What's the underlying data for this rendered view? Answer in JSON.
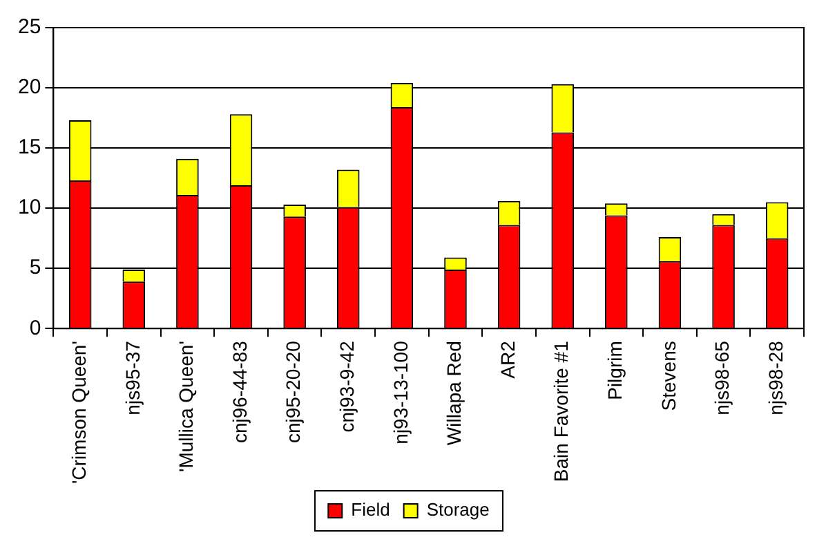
{
  "chart_data": {
    "type": "bar",
    "stacked": true,
    "categories": [
      "'Crimson Queen'",
      "njs95-37",
      "'Mullica Queen'",
      "cnj96-44-83",
      "cnj95-20-20",
      "cnj93-9-42",
      "nj93-13-100",
      "Willapa Red",
      "AR2",
      "Bain Favorite #1",
      "Pilgrim",
      "Stevens",
      "njs98-65",
      "njs98-28"
    ],
    "series": [
      {
        "name": "Field",
        "color": "#ff0000",
        "values": [
          12.3,
          3.9,
          11.1,
          11.9,
          9.3,
          10.1,
          18.4,
          4.9,
          8.6,
          16.3,
          9.4,
          5.6,
          8.6,
          7.5
        ]
      },
      {
        "name": "Storage",
        "color": "#ffff00",
        "values": [
          5.0,
          1.0,
          3.0,
          5.9,
          1.0,
          3.1,
          2.0,
          1.0,
          2.0,
          4.0,
          1.0,
          2.0,
          0.9,
          3.0
        ]
      }
    ],
    "ylim": [
      0,
      25
    ],
    "yticks": [
      0,
      5,
      10,
      15,
      20,
      25
    ],
    "grid": "y",
    "legend": "bottom"
  }
}
